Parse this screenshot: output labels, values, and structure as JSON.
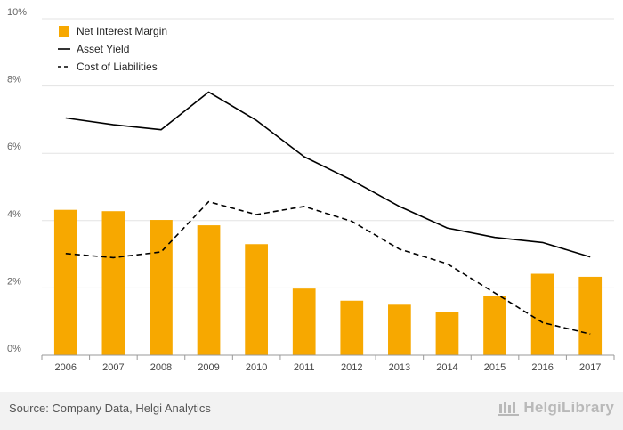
{
  "chart_data": {
    "type": "bar",
    "categories": [
      "2006",
      "2007",
      "2008",
      "2009",
      "2010",
      "2011",
      "2012",
      "2013",
      "2014",
      "2015",
      "2016",
      "2017"
    ],
    "series": [
      {
        "name": "Net Interest Margin",
        "kind": "bar",
        "color": "#f7a800",
        "values": [
          4.32,
          4.28,
          4.02,
          3.86,
          3.3,
          1.98,
          1.62,
          1.5,
          1.27,
          1.75,
          2.42,
          2.33
        ]
      },
      {
        "name": "Asset Yield",
        "kind": "line",
        "style": "solid",
        "color": "#000000",
        "values": [
          7.05,
          6.85,
          6.7,
          7.82,
          6.98,
          5.9,
          5.2,
          4.42,
          3.78,
          3.5,
          3.35,
          2.92
        ]
      },
      {
        "name": "Cost of Liabilities",
        "kind": "line",
        "style": "dashed",
        "color": "#000000",
        "values": [
          3.02,
          2.9,
          3.07,
          4.56,
          4.18,
          4.42,
          3.98,
          3.15,
          2.72,
          1.85,
          0.97,
          0.63
        ]
      }
    ],
    "yticks": [
      "0%",
      "2%",
      "4%",
      "6%",
      "8%",
      "10%"
    ],
    "ylim": [
      0,
      10
    ],
    "grid": true,
    "legend_position": "top-left"
  },
  "footer": {
    "source": "Source: Company Data, Helgi Analytics",
    "brand": "HelgiLibrary"
  }
}
